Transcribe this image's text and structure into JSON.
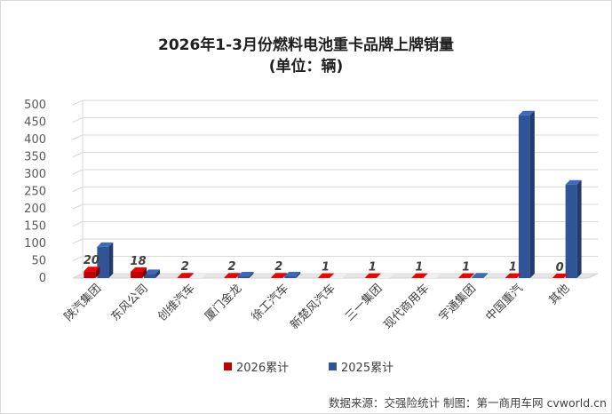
{
  "chart_data": {
    "type": "bar",
    "title": "2026年1-3月份燃料电池重卡品牌上牌销量",
    "subtitle": "(单位：辆)",
    "categories": [
      "陕汽集团",
      "东风公司",
      "创维汽车",
      "厦门金龙",
      "徐工汽车",
      "新楚风汽车",
      "三一集团",
      "现代商用车",
      "宇通集团",
      "中国重汽",
      "其他"
    ],
    "series": [
      {
        "name": "2026累计",
        "values": [
          20,
          18,
          2,
          2,
          2,
          1,
          1,
          1,
          1,
          1,
          0
        ],
        "color": "#c00000"
      },
      {
        "name": "2025累计",
        "values": [
          90,
          12,
          0,
          5,
          5,
          0,
          0,
          0,
          2,
          470,
          270
        ],
        "color": "#2f5597"
      }
    ],
    "ylim": [
      0,
      500
    ],
    "yticks": [
      0,
      50,
      100,
      150,
      200,
      250,
      300,
      350,
      400,
      450,
      500
    ],
    "grid": true,
    "legend_position": "bottom",
    "data_labels_series": "2026累计"
  },
  "source_text": "数据来源：交强险统计  制图：第一商用车网 cvworld.cn"
}
